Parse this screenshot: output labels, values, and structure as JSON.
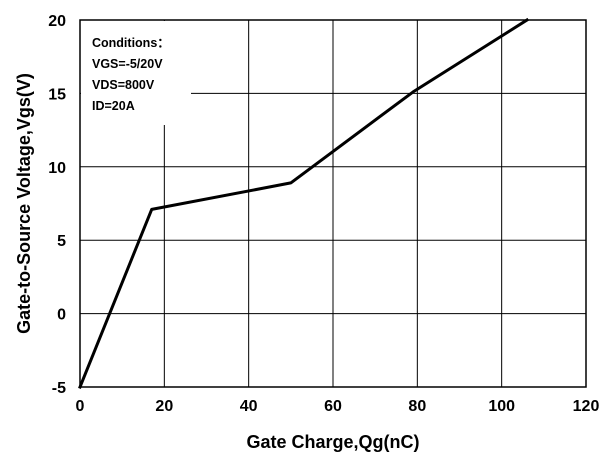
{
  "chart_data": {
    "type": "line",
    "title": "",
    "xlabel": "Gate Charge,Qg(nC)",
    "ylabel": "Gate-to-Source Voltage,Vgs(V)",
    "xlim": [
      0,
      120
    ],
    "ylim": [
      -5,
      20
    ],
    "x_ticks": [
      "0",
      "20",
      "40",
      "60",
      "80",
      "100",
      "120"
    ],
    "y_ticks": [
      "-5",
      "0",
      "5",
      "10",
      "15",
      "20"
    ],
    "grid": true,
    "legend": "none",
    "series": [
      {
        "color": "#000000",
        "x": [
          0,
          17,
          50,
          79,
          106
        ],
        "y": [
          -5,
          7.1,
          8.9,
          15.1,
          20.2
        ]
      }
    ],
    "annotation": {
      "lines": [
        "Conditions：",
        "VGS=-5/20V",
        "VDS=800V",
        "ID=20A"
      ]
    }
  }
}
